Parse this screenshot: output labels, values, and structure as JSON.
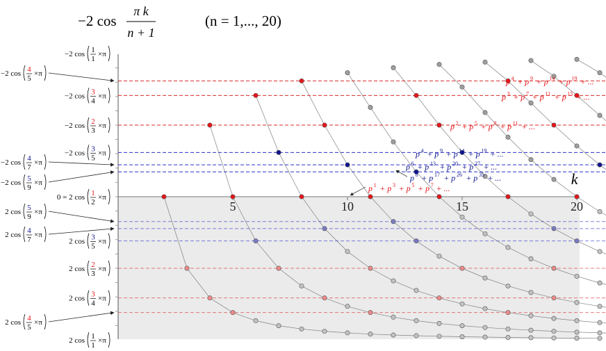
{
  "chart_data": {
    "type": "scatter",
    "title_expr": {
      "lead": "−2 cos",
      "numerator": "π k",
      "denominator": "n + 1"
    },
    "subtitle": "(n = 1,..., 20)",
    "xlabel": "k",
    "ylabel": "",
    "x_ticks": [
      "5",
      "10",
      "15",
      "20"
    ],
    "xlim": [
      0,
      20
    ],
    "ylim": [
      -2,
      2
    ],
    "n_max": 20,
    "point_colors": {
      "gray": "#9e9e9e",
      "red": "#e8151a",
      "blue": "#10158f",
      "red_faded": "#ee8a8a",
      "blue_faded": "#7a7bc4"
    },
    "line_colors": {
      "red": "#d92a2a",
      "blue": "#2a30c8",
      "gray": "#808080"
    },
    "shade_color": "#ebebeb",
    "series_definition": "y(n,k) = -2*cos(pi*k/(n+1)), k = 1..n, n = 1..20; points drawn at x = k + n (rotated diagonals)",
    "left_labels": [
      {
        "lead": "−2 cos",
        "num": "1",
        "den": "1",
        "num_color": "#000000",
        "tail": "×π",
        "outside": false
      },
      {
        "lead": "−2 cos",
        "num": "4",
        "den": "5",
        "num_color": "#e8151a",
        "tail": "×π",
        "outside": true
      },
      {
        "lead": "−2 cos",
        "num": "3",
        "den": "4",
        "num_color": "#e8151a",
        "tail": "×π",
        "outside": false
      },
      {
        "lead": "−2 cos",
        "num": "2",
        "den": "3",
        "num_color": "#e8151a",
        "tail": "×π",
        "outside": false
      },
      {
        "lead": "−2 cos",
        "num": "3",
        "den": "5",
        "num_color": "#10158f",
        "tail": "×π",
        "outside": false
      },
      {
        "lead": "−2 cos",
        "num": "4",
        "den": "7",
        "num_color": "#10158f",
        "tail": "×π",
        "outside": true
      },
      {
        "lead": "−2 cos",
        "num": "5",
        "den": "9",
        "num_color": "#10158f",
        "tail": "×π",
        "outside": true
      },
      {
        "lead": "0 = 2 cos",
        "num": "1",
        "den": "2",
        "num_color": "#e8151a",
        "tail": "×π",
        "outside": false
      },
      {
        "lead": "2 cos",
        "num": "5",
        "den": "9",
        "num_color": "#10158f",
        "tail": "×π",
        "outside": true
      },
      {
        "lead": "2 cos",
        "num": "4",
        "den": "7",
        "num_color": "#10158f",
        "tail": "×π",
        "outside": true
      },
      {
        "lead": "2 cos",
        "num": "3",
        "den": "5",
        "num_color": "#10158f",
        "tail": "×π",
        "outside": false
      },
      {
        "lead": "2 cos",
        "num": "2",
        "den": "3",
        "num_color": "#e8151a",
        "tail": "×π",
        "outside": false
      },
      {
        "lead": "2 cos",
        "num": "3",
        "den": "4",
        "num_color": "#e8151a",
        "tail": "×π",
        "outside": false
      },
      {
        "lead": "2 cos",
        "num": "4",
        "den": "5",
        "num_color": "#e8151a",
        "tail": "×π",
        "outside": true
      },
      {
        "lead": "2 cos",
        "num": "1",
        "den": "1",
        "num_color": "#000000",
        "tail": "×π",
        "outside": false
      }
    ],
    "sums": [
      {
        "color": "#e8151a",
        "terms": [
          [
            "p",
            "4"
          ],
          [
            "+ p",
            "9"
          ],
          [
            "+ p",
            "14"
          ],
          [
            "+ p",
            "19"
          ]
        ],
        "tail": "+ ..."
      },
      {
        "color": "#e8151a",
        "terms": [
          [
            "p",
            "3"
          ],
          [
            "+ p",
            "7"
          ],
          [
            "+ p",
            "11"
          ],
          [
            "+ p",
            "15"
          ]
        ],
        "tail": "+ ..."
      },
      {
        "color": "#e8151a",
        "terms": [
          [
            "p",
            "2"
          ],
          [
            "+ p",
            "5"
          ],
          [
            "+ p",
            "8"
          ],
          [
            "+ p",
            "11"
          ]
        ],
        "tail": "+ ..."
      },
      {
        "color": "#10158f",
        "terms": [
          [
            "p",
            "4"
          ],
          [
            "+ p",
            "9"
          ],
          [
            "+ p",
            "14"
          ],
          [
            "+ p",
            "19"
          ]
        ],
        "tail": "+ ..."
      },
      {
        "color": "#10158f",
        "terms": [
          [
            "p",
            "6"
          ],
          [
            "+ p",
            "13"
          ],
          [
            "+ p",
            "20"
          ],
          [
            "+ p",
            "27"
          ]
        ],
        "tail": "+ ..."
      },
      {
        "color": "#10158f",
        "terms": [
          [
            "p",
            "8"
          ],
          [
            "+ p",
            "17"
          ],
          [
            "+ p",
            "26"
          ],
          [
            "+ p",
            "35"
          ]
        ],
        "tail": "+ ..."
      },
      {
        "color": "#e8151a",
        "terms": [
          [
            "p",
            "1"
          ],
          [
            "+ p",
            "3"
          ],
          [
            "+ p",
            "5"
          ],
          [
            "+ p",
            "7"
          ]
        ],
        "tail": "+ ..."
      }
    ]
  }
}
